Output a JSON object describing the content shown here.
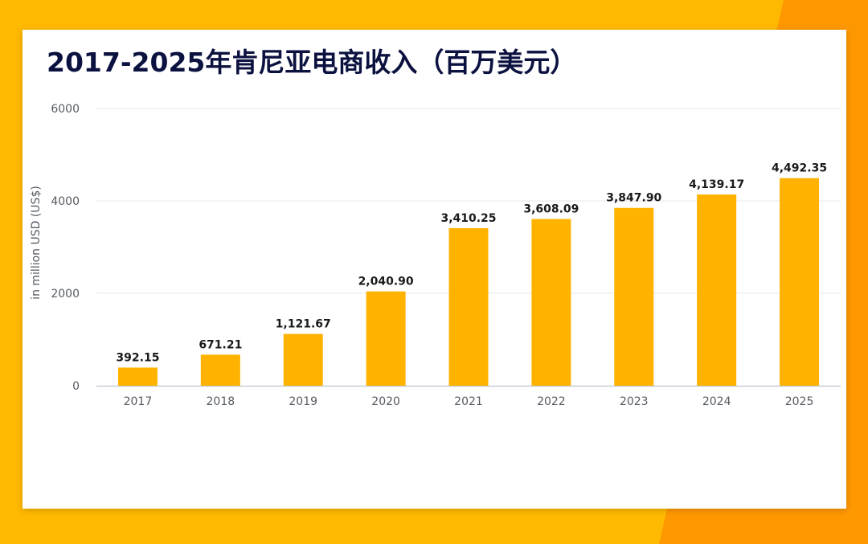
{
  "colors": {
    "bar": "#FFB300",
    "background_left": "#FFB900",
    "background_right": "#FF9800",
    "grid": "#E4E7EB",
    "axis": "#B9C2CE",
    "title": "#0C1240"
  },
  "chart_data": {
    "type": "bar",
    "title": "2017-2025年肯尼亚电商收入（百万美元）",
    "xlabel": "",
    "ylabel": "in million USD (US$)",
    "categories": [
      "2017",
      "2018",
      "2019",
      "2020",
      "2021",
      "2022",
      "2023",
      "2024",
      "2025"
    ],
    "values": [
      392.15,
      671.21,
      1121.67,
      2040.9,
      3410.25,
      3608.09,
      3847.9,
      4139.17,
      4492.35
    ],
    "value_labels": [
      "392.15",
      "671.21",
      "1,121.67",
      "2,040.90",
      "3,410.25",
      "3,608.09",
      "3,847.90",
      "4,139.17",
      "4,492.35"
    ],
    "ylim": [
      0,
      6000
    ],
    "yticks": [
      "0",
      "2000",
      "4000",
      "6000"
    ],
    "grid": true,
    "legend": "none"
  }
}
